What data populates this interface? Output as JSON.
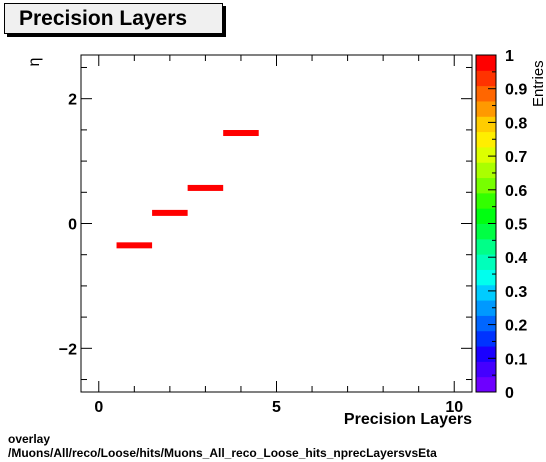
{
  "title": "Precision Layers",
  "footer": {
    "line1": "overlay",
    "line2": "/Muons/All/reco/Loose/hits/Muons_All_reco_Loose_hits_nprecLayersvsEta"
  },
  "chart_data": {
    "type": "heatmap",
    "title": "Precision Layers",
    "xlabel": "Precision Layers",
    "ylabel": "η",
    "zlabel": "Entries",
    "xlim": [
      -0.5,
      10.5
    ],
    "ylim": [
      -2.7,
      2.7
    ],
    "zlim": [
      0,
      1
    ],
    "x_ticks": [
      0,
      5,
      10
    ],
    "y_ticks": [
      -2,
      0,
      2
    ],
    "z_ticks": [
      "0",
      "0.1",
      "0.2",
      "0.3",
      "0.4",
      "0.5",
      "0.6",
      "0.7",
      "0.8",
      "0.9",
      "1"
    ],
    "bins": [
      {
        "x_low": 0.5,
        "x_high": 1.5,
        "y": -0.35,
        "value": 1
      },
      {
        "x_low": 1.5,
        "x_high": 2.5,
        "y": 0.17,
        "value": 1
      },
      {
        "x_low": 2.5,
        "x_high": 3.5,
        "y": 0.57,
        "value": 1
      },
      {
        "x_low": 3.5,
        "x_high": 4.5,
        "y": 1.45,
        "value": 1
      }
    ],
    "bin_color": "#ff0000",
    "palette": [
      "#6e00ff",
      "#4400ff",
      "#1a00ff",
      "#0033ff",
      "#0066ff",
      "#0099ff",
      "#00ccff",
      "#00ffee",
      "#00ffbb",
      "#00ff88",
      "#00ff44",
      "#00ff11",
      "#33ff00",
      "#77ff00",
      "#aaff00",
      "#ddff00",
      "#ffee00",
      "#ffcc00",
      "#ff9900",
      "#ff6600",
      "#ff3300",
      "#ff0000"
    ],
    "grid": false,
    "legend": "colorbar-right"
  }
}
